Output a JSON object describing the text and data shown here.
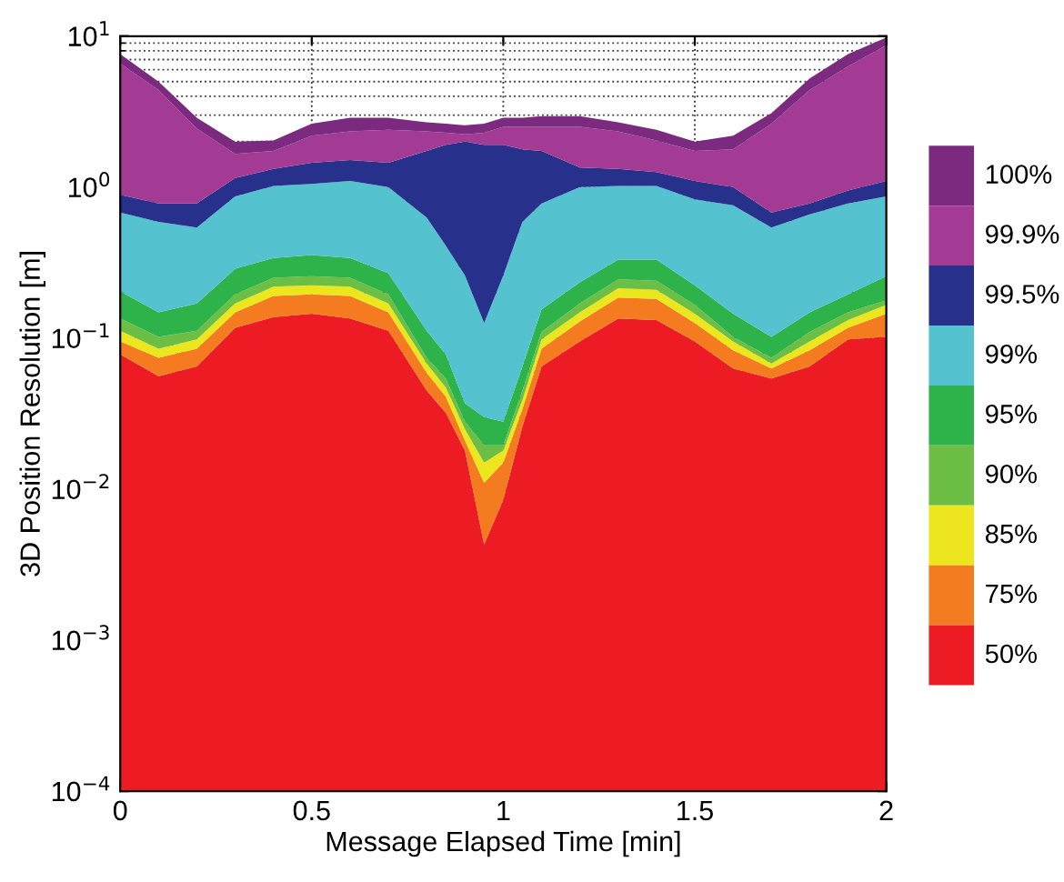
{
  "chart_data": {
    "type": "area",
    "xlabel": "Message Elapsed Time [min]",
    "ylabel": "3D Position Resolution [m]",
    "x": [
      0,
      0.1,
      0.2,
      0.3,
      0.4,
      0.5,
      0.6,
      0.7,
      0.8,
      0.85,
      0.9,
      0.95,
      1.0,
      1.05,
      1.1,
      1.2,
      1.3,
      1.4,
      1.5,
      1.6,
      1.7,
      1.8,
      1.9,
      2.0
    ],
    "series": [
      {
        "name": "50%",
        "color": "#ed1c24",
        "values": [
          0.078,
          0.056,
          0.065,
          0.117,
          0.138,
          0.145,
          0.135,
          0.112,
          0.045,
          0.032,
          0.018,
          0.0043,
          0.0085,
          0.026,
          0.065,
          0.095,
          0.135,
          0.132,
          0.095,
          0.063,
          0.054,
          0.065,
          0.098,
          0.102
        ]
      },
      {
        "name": "75%",
        "color": "#f47b20",
        "values": [
          0.095,
          0.074,
          0.085,
          0.148,
          0.19,
          0.195,
          0.19,
          0.148,
          0.059,
          0.041,
          0.021,
          0.011,
          0.015,
          0.034,
          0.085,
          0.129,
          0.186,
          0.182,
          0.126,
          0.083,
          0.063,
          0.083,
          0.117,
          0.145
        ]
      },
      {
        "name": "85%",
        "color": "#ece61e",
        "values": [
          0.112,
          0.085,
          0.098,
          0.17,
          0.219,
          0.224,
          0.219,
          0.17,
          0.068,
          0.047,
          0.025,
          0.015,
          0.018,
          0.039,
          0.098,
          0.148,
          0.214,
          0.209,
          0.145,
          0.095,
          0.068,
          0.095,
          0.132,
          0.166
        ]
      },
      {
        "name": "90%",
        "color": "#6dbe45",
        "values": [
          0.135,
          0.102,
          0.112,
          0.195,
          0.251,
          0.257,
          0.251,
          0.195,
          0.074,
          0.054,
          0.028,
          0.0195,
          0.0195,
          0.045,
          0.11,
          0.17,
          0.245,
          0.24,
          0.166,
          0.102,
          0.074,
          0.11,
          0.148,
          0.178
        ]
      },
      {
        "name": "95%",
        "color": "#2db34a",
        "values": [
          0.204,
          0.148,
          0.17,
          0.288,
          0.339,
          0.355,
          0.339,
          0.269,
          0.112,
          0.078,
          0.037,
          0.03,
          0.028,
          0.065,
          0.155,
          0.234,
          0.331,
          0.331,
          0.224,
          0.145,
          0.102,
          0.148,
          0.195,
          0.257
        ]
      },
      {
        "name": "99%",
        "color": "#55c3cf",
        "values": [
          0.68,
          0.59,
          0.54,
          0.87,
          1.02,
          1.05,
          1.1,
          1.0,
          0.63,
          0.41,
          0.26,
          0.126,
          0.26,
          0.59,
          0.78,
          1.0,
          1.02,
          1.02,
          0.83,
          0.76,
          0.54,
          0.66,
          0.78,
          0.87
        ]
      },
      {
        "name": "99.5%",
        "color": "#27318b",
        "values": [
          0.89,
          0.78,
          0.78,
          1.15,
          1.32,
          1.45,
          1.51,
          1.45,
          1.74,
          1.91,
          2.0,
          1.91,
          1.91,
          1.78,
          1.74,
          1.35,
          1.32,
          1.26,
          1.1,
          1.0,
          0.68,
          0.78,
          0.95,
          1.1
        ]
      },
      {
        "name": "99.9%",
        "color": "#a33a94",
        "values": [
          6.6,
          4.4,
          2.45,
          1.66,
          1.74,
          2.19,
          2.34,
          2.4,
          2.34,
          2.29,
          2.24,
          2.29,
          2.51,
          2.51,
          2.51,
          2.51,
          2.34,
          2.04,
          1.74,
          1.78,
          2.63,
          4.4,
          6.3,
          8.7
        ]
      },
      {
        "name": "100%",
        "color": "#7b2a7f",
        "values": [
          7.6,
          5.0,
          2.88,
          2.0,
          2.04,
          2.63,
          2.88,
          2.88,
          2.69,
          2.63,
          2.57,
          2.63,
          2.88,
          2.88,
          2.95,
          2.95,
          2.69,
          2.4,
          2.0,
          2.19,
          3.09,
          5.25,
          7.6,
          9.8
        ]
      }
    ],
    "log": "y",
    "xlim": [
      0,
      2
    ],
    "xticks": [
      0,
      0.5,
      1,
      1.5,
      2
    ],
    "ylim": [
      0.0001,
      10
    ],
    "yticks": [
      {
        "value": 0.0001,
        "label": "10$^{−4}$"
      },
      {
        "value": 0.001,
        "label": "10$^{−3}$"
      },
      {
        "value": 0.01,
        "label": "10$^{−2}$"
      },
      {
        "value": 0.1,
        "label": "10$^{−1}$"
      },
      {
        "value": 1,
        "label": "10$^{0}$"
      },
      {
        "value": 10,
        "label": "10$^{1}$"
      }
    ],
    "grid": true,
    "line_style": "dotted",
    "legend": "right"
  }
}
